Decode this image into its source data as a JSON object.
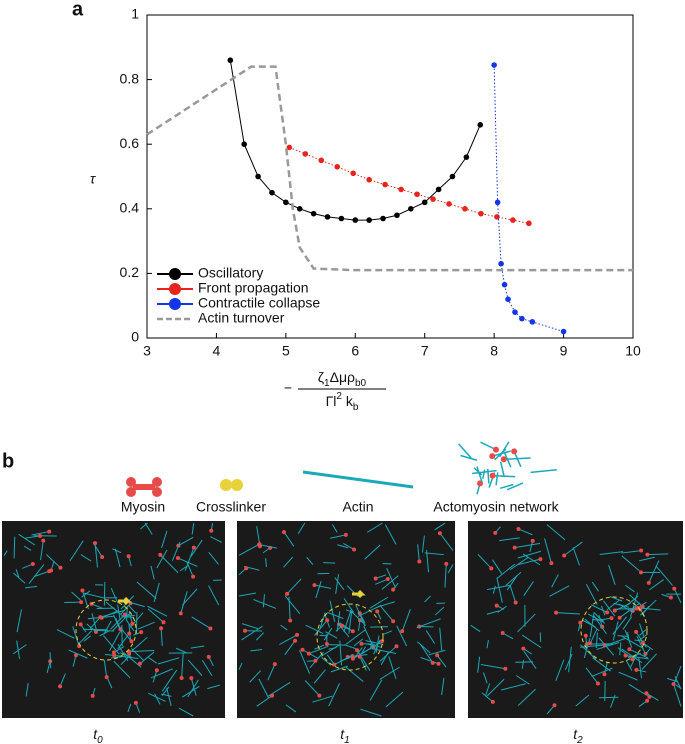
{
  "chart_data": {
    "type": "line",
    "panel_label": "a",
    "y_label": "τ",
    "x_label": {
      "sign": "−",
      "numerator": [
        "ζ",
        "1",
        "Δμρ",
        "b0"
      ],
      "denominator": [
        "Γl",
        "2",
        " k",
        "b"
      ]
    },
    "xlim": [
      3,
      10
    ],
    "xticks": [
      3,
      4,
      5,
      6,
      7,
      8,
      9,
      10
    ],
    "ylim": [
      0,
      1
    ],
    "yticks": [
      0,
      0.2,
      0.4,
      0.6,
      0.8,
      1
    ],
    "legend": "lower left",
    "series": [
      {
        "name": "Oscillatory",
        "color": "#000000",
        "line_style": "solid",
        "markers": true,
        "x": [
          4.2,
          4.4,
          4.6,
          4.8,
          5.0,
          5.2,
          5.4,
          5.6,
          5.8,
          6.0,
          6.2,
          6.4,
          6.6,
          6.8,
          7.0,
          7.2,
          7.4,
          7.6,
          7.8
        ],
        "values": [
          0.86,
          0.6,
          0.5,
          0.45,
          0.42,
          0.4,
          0.385,
          0.375,
          0.37,
          0.365,
          0.365,
          0.37,
          0.38,
          0.4,
          0.42,
          0.46,
          0.5,
          0.56,
          0.66
        ]
      },
      {
        "name": "Front propagation",
        "color": "#e8231c",
        "line_style": "dotted",
        "markers": true,
        "x": [
          5.05,
          5.28,
          5.51,
          5.74,
          5.97,
          6.2,
          6.43,
          6.66,
          6.89,
          7.12,
          7.35,
          7.58,
          7.81,
          8.04,
          8.27,
          8.5
        ],
        "values": [
          0.59,
          0.57,
          0.55,
          0.53,
          0.51,
          0.49,
          0.475,
          0.46,
          0.445,
          0.43,
          0.415,
          0.4,
          0.385,
          0.375,
          0.365,
          0.355
        ]
      },
      {
        "name": "Contractile collapse",
        "color": "#1536e6",
        "line_style": "dotted",
        "markers": true,
        "x": [
          8.0,
          8.05,
          8.1,
          8.15,
          8.2,
          8.3,
          8.4,
          8.55,
          9.0
        ],
        "values": [
          0.845,
          0.42,
          0.23,
          0.165,
          0.12,
          0.08,
          0.06,
          0.05,
          0.02
        ]
      },
      {
        "name": "Actin turnover",
        "color": "#999999",
        "line_style": "dashed",
        "markers": false,
        "x": [
          3,
          4.5,
          4.85,
          5.0,
          5.1,
          5.2,
          5.4,
          6,
          10
        ],
        "values": [
          0.63,
          0.84,
          0.84,
          0.6,
          0.4,
          0.28,
          0.215,
          0.21,
          0.21
        ]
      }
    ]
  },
  "panel_b": {
    "panel_label": "b",
    "components": [
      "Myosin",
      "Crosslinker",
      "Actin",
      "Actomyosin network"
    ],
    "time_labels": [
      [
        "t",
        "0"
      ],
      [
        "t",
        "1"
      ],
      [
        "t",
        "2"
      ]
    ]
  }
}
